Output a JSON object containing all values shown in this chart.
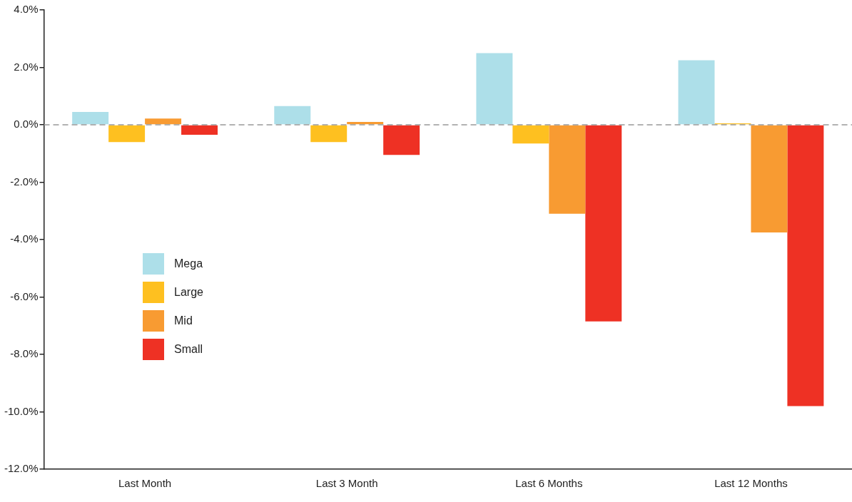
{
  "chart_data": {
    "type": "bar",
    "categories": [
      "Last Month",
      "Last 3 Month",
      "Last 6 Months",
      "Last 12 Months"
    ],
    "series": [
      {
        "name": "Mega",
        "color": "#addfe9",
        "values": [
          0.45,
          0.65,
          2.5,
          2.25
        ]
      },
      {
        "name": "Large",
        "color": "#fec020",
        "values": [
          -0.6,
          -0.6,
          -0.65,
          0.05
        ]
      },
      {
        "name": "Mid",
        "color": "#f89b32",
        "values": [
          0.22,
          0.1,
          -3.1,
          -3.75
        ]
      },
      {
        "name": "Small",
        "color": "#ee3124",
        "values": [
          -0.35,
          -1.05,
          -6.85,
          -9.8
        ]
      }
    ],
    "ylim": [
      -12,
      4
    ],
    "yticks": [
      {
        "value": 4,
        "label": "4.0%"
      },
      {
        "value": 2,
        "label": "2.0%"
      },
      {
        "value": 0,
        "label": "0.0%"
      },
      {
        "value": -2,
        "label": "-2.0%"
      },
      {
        "value": -4,
        "label": "-4.0%"
      },
      {
        "value": -6,
        "label": "-6.0%"
      },
      {
        "value": -8,
        "label": "-8.0%"
      },
      {
        "value": -10,
        "label": "-10.0%"
      },
      {
        "value": -12,
        "label": "-12.0%"
      }
    ],
    "ref_lines": [
      {
        "axis": "y",
        "value": 0,
        "color": "#999999",
        "line_style": "dashed"
      }
    ],
    "grid": false,
    "legend": "left"
  }
}
